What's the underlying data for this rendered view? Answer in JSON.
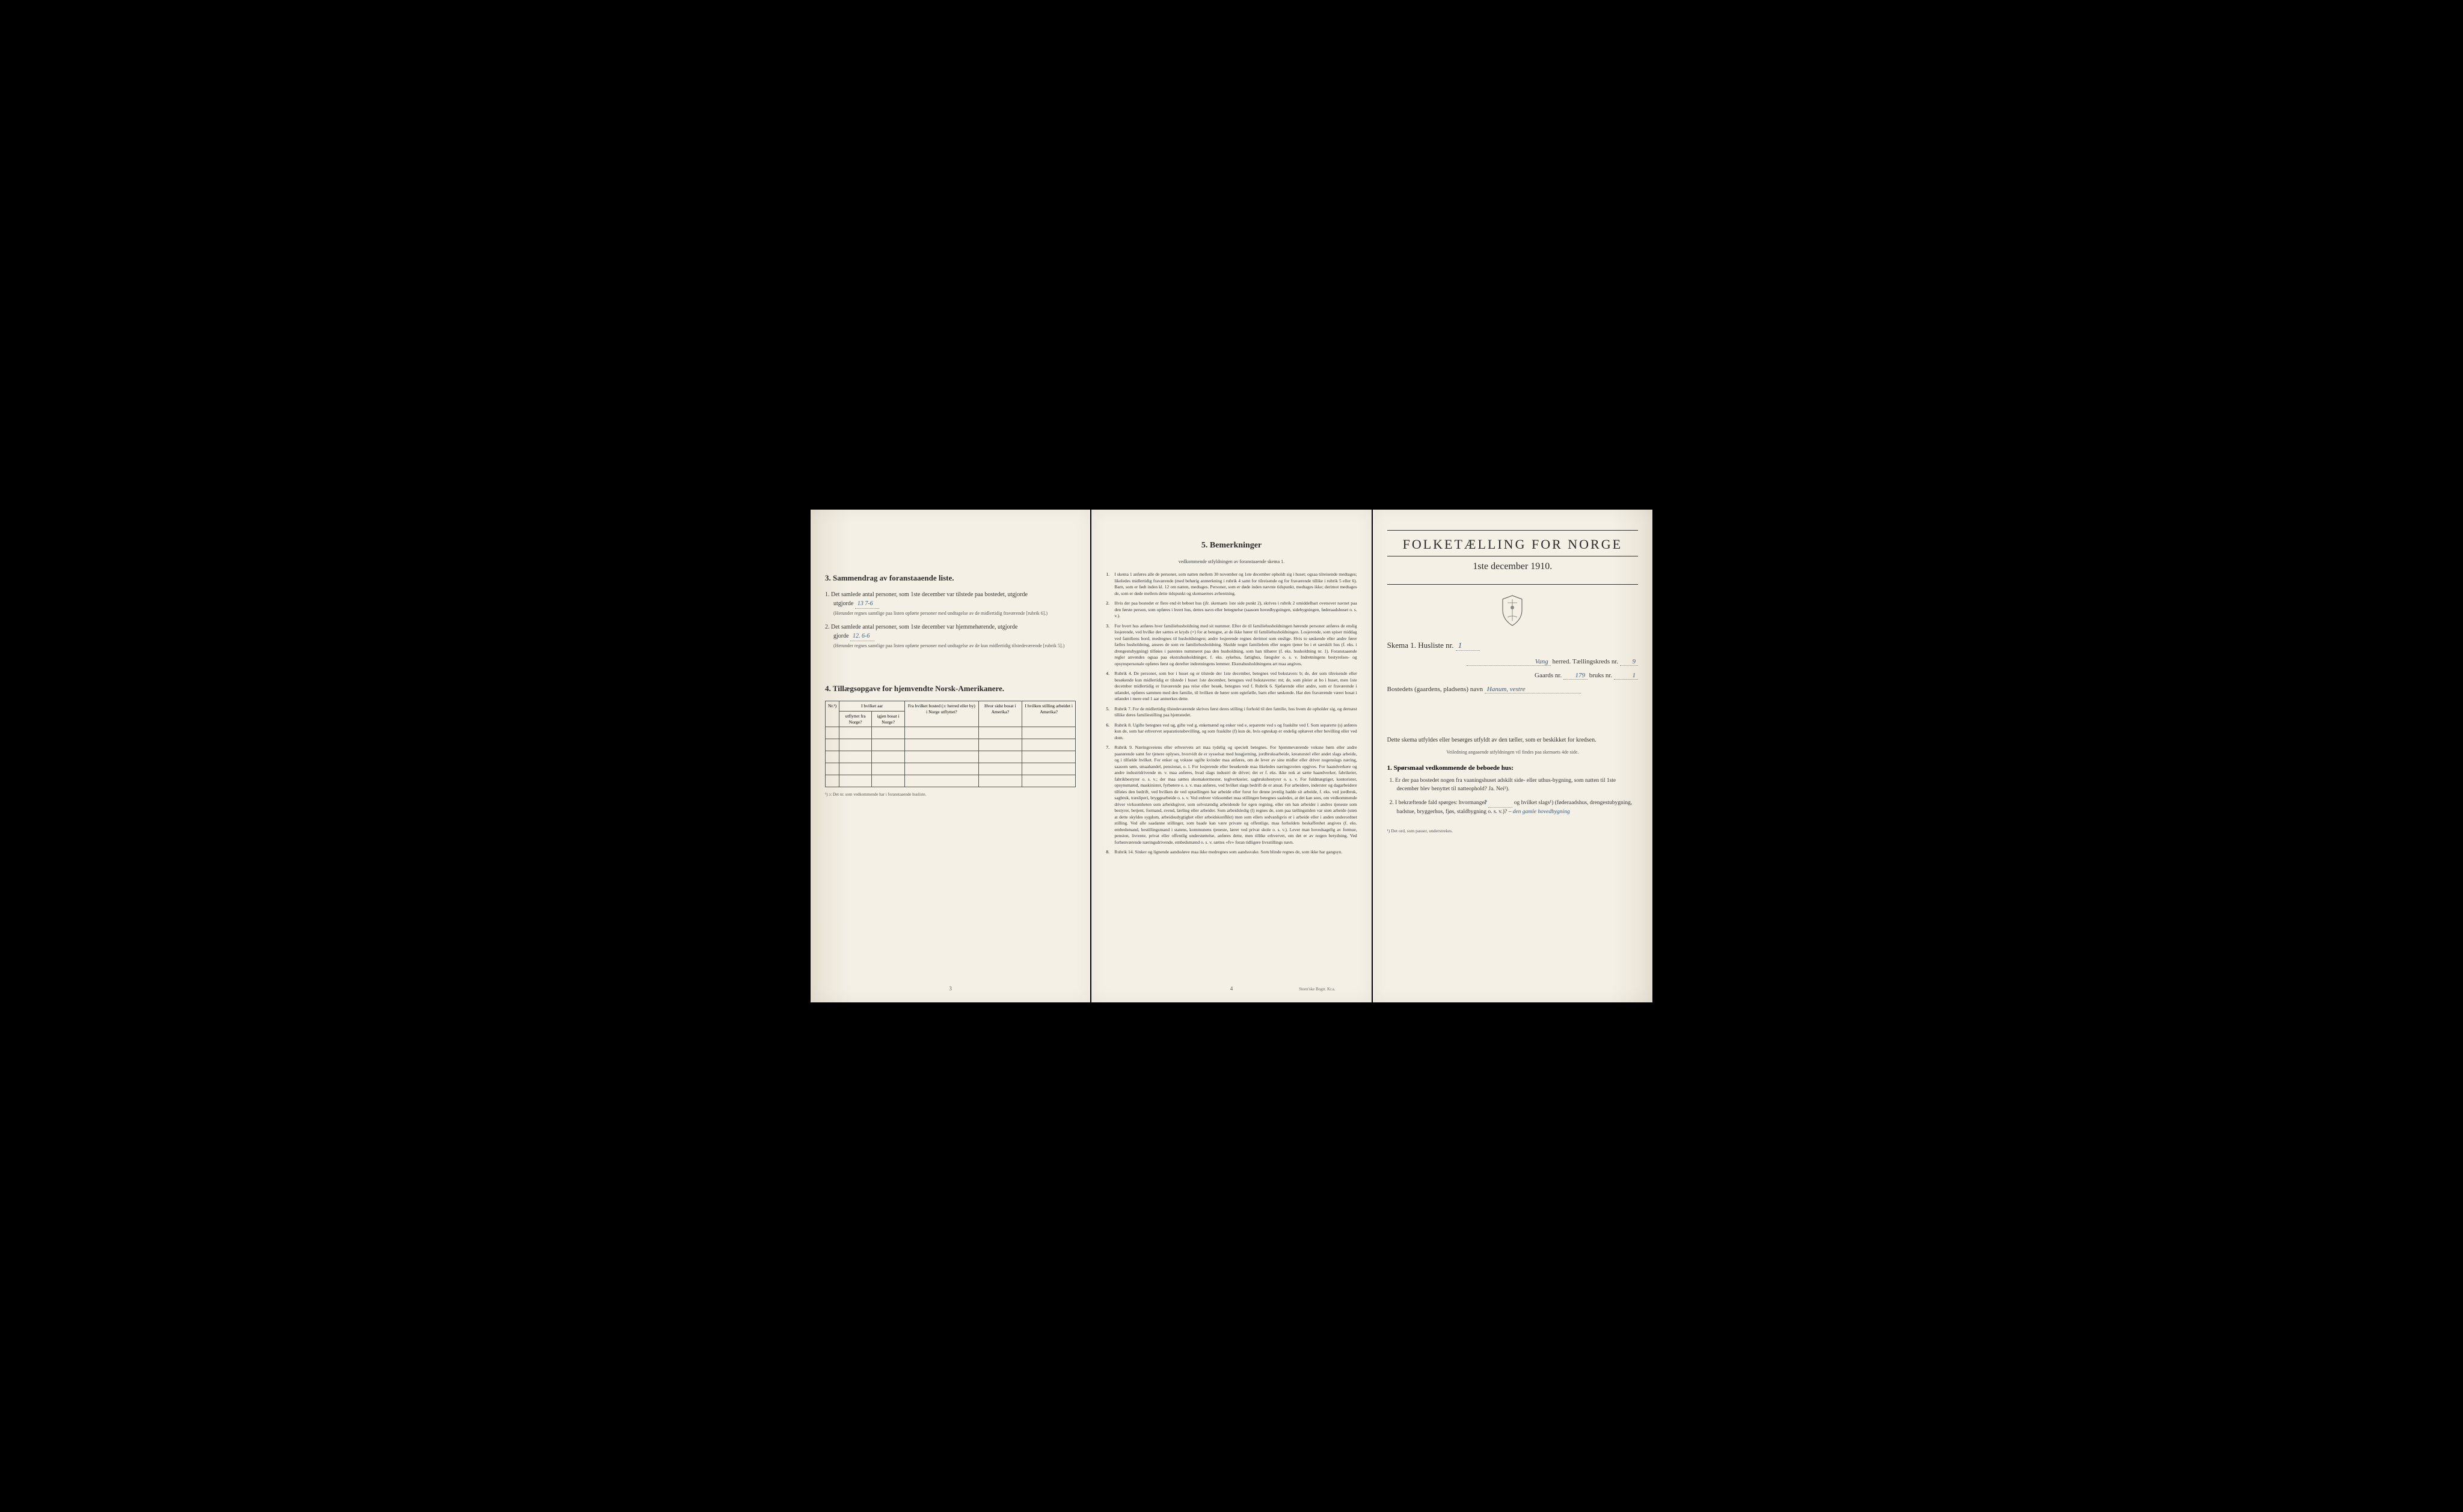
{
  "left_page": {
    "section3_title": "3.  Sammendrag av foranstaaende liste.",
    "item1_text": "Det samlede antal personer, som 1ste december var tilstede paa bostedet, utgjorde",
    "item1_value": "13   7-6",
    "item1_note": "(Herunder regnes samtlige paa listen opførte personer med undtagelse av de midlertidig fraværende [rubrik 6].)",
    "item2_text": "Det samlede antal personer, som 1ste december var hjemmehørende, utgjorde",
    "item2_value": "12. 6-6",
    "item2_note": "(Herunder regnes samtlige paa listen opførte personer med undtagelse av de kun midlertidig tilstedeværende [rubrik 5].)",
    "section4_title": "4.  Tillægsopgave for hjemvendte Norsk-Amerikanere.",
    "table": {
      "columns": [
        "Nr.¹)",
        "I hvilket aar utflyttet fra Norge?",
        "I hvilket aar igjen bosat i Norge?",
        "Fra hvilket bosted (ɔ: herred eller by) i Norge utflyttet?",
        "Hvor sidst bosat i Amerika?",
        "I hvilken stilling arbeidet i Amerika?"
      ],
      "rows": 5
    },
    "table_footnote": "¹) ɔ: Det nr. som vedkommende har i foranstaaende husliste.",
    "page_number": "3"
  },
  "middle_page": {
    "section5_title": "5.  Bemerkninger",
    "section5_subtitle": "vedkommende utfyldningen av foranstaaende skema 1.",
    "items": [
      {
        "num": "1.",
        "text": "I skema 1 anføres alle de personer, som natten mellem 30 november og 1ste december opholdt sig i huset; ogsaa tilreisende medtages; likeledes midlertidig fraværende (med behørig anmerkning i rubrik 4 samt for tilreisende og for fraværende tillike i rubrik 5 eller 6). Barn, som er født inden kl. 12 om natten, medtages. Personer, som er døde inden nævnte tidspunkt, medtages ikke; derimot medtages de, som er døde mellem dette tidspunkt og skemaernes avhentning."
      },
      {
        "num": "2.",
        "text": "Hvis der paa bostedet er flere end ét beboet hus (jfr. skemaets 1ste side punkt 2), skrives i rubrik 2 umiddelbart ovenover navnet paa den første person, som opføres i hvert hus, dettes navn eller betegnelse (saasom hovedbygningen, sidebygningen, føderaadshuset o. s. v.)."
      },
      {
        "num": "3.",
        "text": "For hvert hus anføres hver familiehusholdning med sit nummer. Efter de til familiehusholdningen hørende personer anføres de enslig losjerende, ved hvilke der sættes et kryds (×) for at betegne, at de ikke hører til familiehusholdningen. Losjerende, som spiser middag ved familiens bord, medregnes til husholdningen; andre losjerende regnes derimot som enslige. Hvis to søskende eller andre fører fælles husholdning, ansees de som en familiehusholdning. Skulde noget familielem eller nogen tjener bo i et særskilt hus (f. eks. i drengestubygning) tilføies i parentes nummeret paa den husholdning, som han tilhører (f. eks. husholdning nr. 1). Foranstaaende regler anvendes ogsaa paa ekstrahusholdninger, f. eks. sykehus, fattighus, fængsler o. s. v. Indretningens bestyrelses- og opsynspersonale opføres først og derefter indretningens lemmer. Ekstrahusholdningens art maa angives."
      },
      {
        "num": "4.",
        "text": "Rubrik 4. De personer, som bor i huset og er tilstede der 1ste december, betegnes ved bokstaven: b; de, der som tilreisende eller besøkende kun midlertidig er tilstede i huset 1ste december, betegnes ved bokstaverne: mt; de, som pleier at bo i huset, men 1ste december midlertidig er fraværende paa reise eller besøk, betegnes ved f. Rubrik 6. Sjøfarende eller andre, som er fraværende i utlandet, opføres sammen med den familie, til hvilken de hører som egtefælle, barn eller søskende. Har den fraværende været bosat i utlandet i mere end 1 aar anmerkes dette."
      },
      {
        "num": "5.",
        "text": "Rubrik 7. For de midlertidig tilstedeværende skrives først deres stilling i forhold til den familie, hos hvem de opholder sig, og dernæst tillike deres familiestilling paa hjemstedet."
      },
      {
        "num": "6.",
        "text": "Rubrik 8. Ugifte betegnes ved ug, gifte ved g, enkemænd og enker ved e, separerte ved s og fraskilte ved f. Som separerte (s) anføres kun de, som har erhvervet separationsbevilling, og som fraskilte (f) kun de, hvis egteskap er endelig ophævet efter bevilling eller ved dom."
      },
      {
        "num": "7.",
        "text": "Rubrik 9. Næringsveiens eller erhvervets art maa tydelig og specielt betegnes. For hjemmeværende voksne børn eller andre paarørende samt for tjenere oplyses, hvorvidt de er sysselsat med husgjerning, jordbruksarbeide, kreaturstel eller andet slags arbeide, og i tilfælde hvilket. For enker og voksne ugifte kvinder maa anføres, om de lever av sine midler eller driver nogenslags næring, saasom søm, smaahandel, pensionat, o. l. For losjerende eller besøkende maa likeledes næringsveien opgives. For haandverkere og andre industridrivende m. v. maa anføres, hvad slags industri de driver; det er f. eks. ikke nok at sætte haandverker, fabrikeier, fabrikbestyrer o. s. v.; der maa sættes skomakermester, teglverkseier, sagbruksbestyrer o. s. v. For fuldmægtiger, kontorister, opsynsmænd, maskinister, fyrbøtere o. s. v. maa anføres, ved hvilket slags bedrift de er ansat. For arbeidere, inderster og dagarbeidere tilføies den bedrift, ved hvilken de ved optællingen har arbeide eller forut for denne jevnlig hadde sit arbeide, f. eks. ved jordbruk, sagbruk, træsliperi, bryggearbeide o. s. v. Ved enhver virksomhet maa stillingen betegnes saaledes, at det kan sees, om vedkommende driver virksomheten som arbeidsgiver, som selvstændig arbeidende for egen regning, eller om han arbeider i andres tjeneste som bestyrer, betjent, formand, svend, lærling eller arbeider. Som arbeidsledig (l) regnes de, som paa tællingstiden var uten arbeide (uten at dette skyldes sygdom, arbeidsudygtighet eller arbeidskonflikt) men som ellers sedvanligvis er i arbeide eller i anden underordnet stilling. Ved alle saadanne stillinger, som baade kan være private og offentlige, maa forholdets beskaffenhet angives (f. eks. embedsmand, bestillingsmand i statens, kommunens tjeneste, lærer ved privat skole o. s. v.). Lever man hovedsagelig av formue, pension, livrente, privat eller offentlig understøttelse, anføres dette, men tillike erhvervet, om det er av nogen betydning. Ved forhenværende næringsdrivende, embedsmænd o. s. v. sættes «fv» foran tidligere livsstillings navn."
      },
      {
        "num": "8.",
        "text": "Rubrik 14. Sinker og lignende aandssløve maa ikke medregnes som aandssvake. Som blinde regnes de, som ikke har gangsyn."
      }
    ],
    "page_number": "4",
    "printer": "Steen'ske Bogtr. Kr.a."
  },
  "right_page": {
    "main_title": "FOLKETÆLLING FOR NORGE",
    "date": "1ste december 1910.",
    "skema_label": "Skema 1.  Husliste nr.",
    "skema_value": "1",
    "herred_value": "Vang",
    "herred_label": "herred.  Tællingskreds nr.",
    "kreds_value": "9",
    "gaards_label": "Gaards nr.",
    "gaards_value": "179",
    "bruks_label": "bruks nr.",
    "bruks_value": "1",
    "bosted_label": "Bostedets (gaardens, pladsens) navn",
    "bosted_value": "Hanum, vestre",
    "desc1": "Dette skema utfyldes eller besørges utfyldt av den tæller, som er beskikket for kredsen.",
    "desc2": "Veiledning angaaende utfyldningen vil findes paa skemaets 4de side.",
    "question_header": "1. Spørsmaal vedkommende de beboede hus:",
    "q1": "1. Er der paa bostedet nogen fra vaaningshuset adskilt side- eller uthus-bygning, som natten til 1ste december blev benyttet til natteophold?  Ja.  Nei¹).",
    "q2_prefix": "2. I bekræftende fald spørges: hvormange?",
    "q2_value": "1",
    "q2_suffix": "og hvilket slags¹) (føderaadshus, drengestubygning, badstue, bryggerhus, fjøs, staldbygning o. s. v.)?",
    "q2_answer": "den gamle hovedbygning",
    "footnote": "¹) Det ord, som passer, understrekes."
  },
  "colors": {
    "paper": "#f5f0e6",
    "paper_edge": "#e8e2d4",
    "text": "#2a2a2a",
    "text_body": "#333333",
    "handwriting": "#3a5a7a",
    "border": "#555555",
    "background": "#000000"
  }
}
